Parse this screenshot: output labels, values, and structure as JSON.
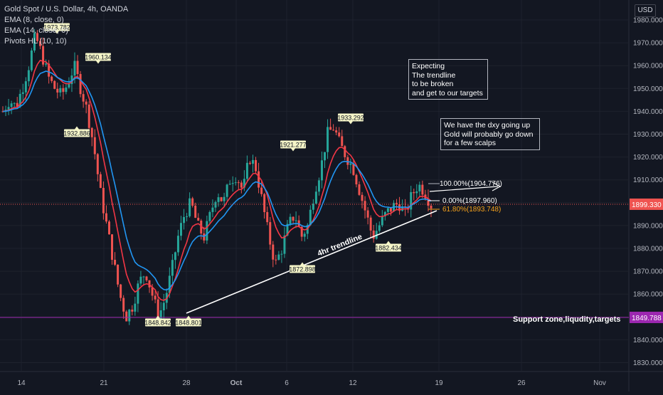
{
  "header": {
    "symbol": "Gold Spot / U.S. Dollar, 4h, OANDA",
    "indicators": [
      "EMA (8, close, 0)",
      "EMA (14, close, 0)",
      "Pivots HL (10, 10)"
    ]
  },
  "currency_button": "USD",
  "colors": {
    "background": "#131722",
    "up": "#26a69a",
    "down": "#ef5350",
    "ema8": "#f23645",
    "ema14": "#2196f3",
    "support": "#9c27b0",
    "fib_upper": "#ffffff",
    "fib_lower": "#f7a21b"
  },
  "chart_data": {
    "type": "candlestick",
    "ylim": [
      1822,
      1988
    ],
    "y_ticks": [
      "1980.000",
      "1970.000",
      "1960.000",
      "1950.000",
      "1940.000",
      "1930.000",
      "1920.000",
      "1910.000",
      "1900.000",
      "1890.000",
      "1880.000",
      "1870.000",
      "1860.000",
      "1850.000",
      "1840.000",
      "1830.000"
    ],
    "x_ticks": [
      "14",
      "21",
      "28",
      "Oct",
      "6",
      "12",
      "19",
      "26",
      "Nov"
    ],
    "price_label": "1899.330",
    "price_value": 1899.33,
    "support_label": "1849.788",
    "support_value": 1849.788,
    "pivots": [
      {
        "label": "1973.782",
        "value": 1973.782
      },
      {
        "label": "1960.134",
        "value": 1960.134
      },
      {
        "label": "1932.886",
        "value": 1932.886
      },
      {
        "label": "1848.842",
        "value": 1848.842
      },
      {
        "label": "1848.801",
        "value": 1848.801
      },
      {
        "label": "1921.277",
        "value": 1921.277
      },
      {
        "label": "1872.898",
        "value": 1872.898
      },
      {
        "label": "1933.292",
        "value": 1933.292
      },
      {
        "label": "1882.434",
        "value": 1882.434
      }
    ],
    "fib_levels": [
      {
        "label": "100.00%(1904.776)",
        "value": 1904.776
      },
      {
        "label": "0.00%(1897.960)",
        "value": 1897.96
      },
      {
        "label": "61.80%(1893.748)",
        "value": 1893.748
      }
    ],
    "trendline_label": "4hr trendline",
    "support_text": "Support zone,liqudity,targets",
    "series_path": [
      1940,
      1945,
      1942,
      1950,
      1960,
      1973,
      1965,
      1955,
      1950,
      1947,
      1952,
      1960,
      1950,
      1940,
      1925,
      1905,
      1890,
      1875,
      1860,
      1850,
      1855,
      1865,
      1870,
      1860,
      1850,
      1858,
      1870,
      1885,
      1895,
      1900,
      1890,
      1885,
      1895,
      1905,
      1900,
      1910,
      1912,
      1905,
      1920,
      1915,
      1900,
      1885,
      1873,
      1880,
      1890,
      1895,
      1885,
      1890,
      1905,
      1915,
      1930,
      1933,
      1925,
      1920,
      1915,
      1905,
      1895,
      1885,
      1890,
      1895,
      1898,
      1900,
      1895,
      1903,
      1908,
      1905,
      1899
    ]
  },
  "annotations": [
    {
      "text": "Expecting\nThe trendline\nto be broken\nand get to our targets"
    },
    {
      "text": "We have the dxy going up\nGold will probably go down\nfor a few scalps"
    }
  ]
}
